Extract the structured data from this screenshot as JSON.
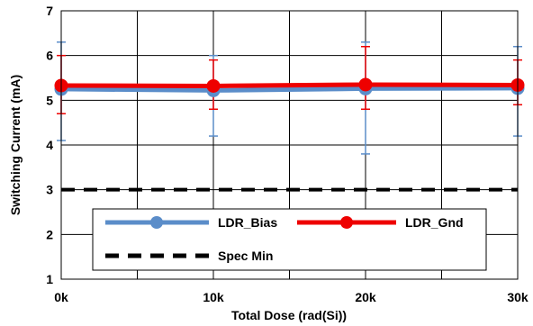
{
  "chart_data": {
    "type": "line",
    "xlabel": "Total Dose (rad(Si))",
    "ylabel": "Switching Current (mA)",
    "x": [
      0,
      10000,
      20000,
      30000
    ],
    "x_tick_labels": [
      "0k",
      "10k",
      "20k",
      "30k"
    ],
    "xlim": [
      0,
      30000
    ],
    "ylim": [
      1,
      7
    ],
    "y_ticks": [
      1,
      2,
      3,
      4,
      5,
      6,
      7
    ],
    "grid": true,
    "legend_position": "bottom-center",
    "series": [
      {
        "name": "LDR_Bias",
        "color": "#5B8DC9",
        "marker": "circle",
        "values": [
          5.25,
          5.22,
          5.26,
          5.27
        ],
        "error_high": [
          6.3,
          6.0,
          6.3,
          6.2
        ],
        "error_low": [
          4.1,
          4.2,
          3.8,
          4.2
        ]
      },
      {
        "name": "LDR_Gnd",
        "color": "#EE0000",
        "marker": "circle",
        "values": [
          5.33,
          5.32,
          5.35,
          5.34
        ],
        "error_high": [
          6.0,
          5.9,
          6.2,
          5.9
        ],
        "error_low": [
          4.7,
          4.8,
          4.8,
          4.9
        ]
      },
      {
        "name": "Spec Min",
        "color": "#000000",
        "style": "dashed",
        "values": [
          3,
          3,
          3,
          3
        ]
      }
    ]
  }
}
